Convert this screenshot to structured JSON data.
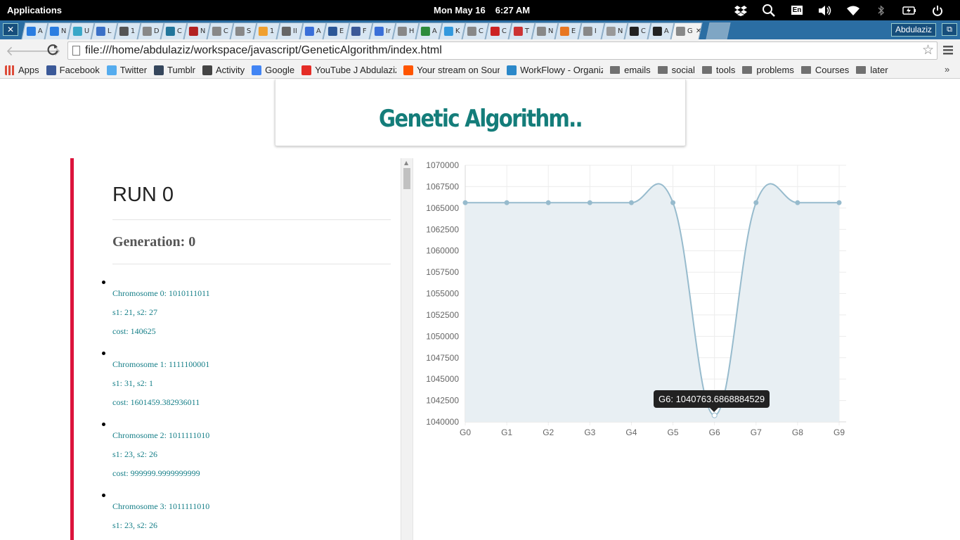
{
  "system": {
    "applications_label": "Applications",
    "date": "Mon May 16",
    "time": "6:27 AM",
    "keyboard_layout": "En",
    "icons": [
      "dropbox-icon",
      "search-icon",
      "keyboard-icon",
      "volume-icon",
      "wifi-icon",
      "bluetooth-icon",
      "battery-icon",
      "power-icon"
    ]
  },
  "tabs": {
    "close_all": "✕",
    "items": [
      {
        "letter": "A",
        "color": "#2a7de1"
      },
      {
        "letter": "N",
        "color": "#2a7de1"
      },
      {
        "letter": "U",
        "color": "#38a7c8"
      },
      {
        "letter": "L",
        "color": "#3a70c7"
      },
      {
        "letter": "1",
        "color": "#555555"
      },
      {
        "letter": "D",
        "color": "#888888"
      },
      {
        "letter": "C",
        "color": "#21759b"
      },
      {
        "letter": "N",
        "color": "#b22222"
      },
      {
        "letter": "C",
        "color": "#888888"
      },
      {
        "letter": "S",
        "color": "#888888"
      },
      {
        "letter": "1",
        "color": "#f0a030"
      },
      {
        "letter": "II",
        "color": "#666666"
      },
      {
        "letter": "A",
        "color": "#3a6fd8"
      },
      {
        "letter": "E",
        "color": "#2b5797"
      },
      {
        "letter": "F",
        "color": "#3b5998"
      },
      {
        "letter": "Ir",
        "color": "#3a6fd8"
      },
      {
        "letter": "H",
        "color": "#888888"
      },
      {
        "letter": "A",
        "color": "#2d8c3c"
      },
      {
        "letter": "K",
        "color": "#3399dd"
      },
      {
        "letter": "C",
        "color": "#888888"
      },
      {
        "letter": "C",
        "color": "#cc2222"
      },
      {
        "letter": "T",
        "color": "#cc3333"
      },
      {
        "letter": "N",
        "color": "#888888"
      },
      {
        "letter": "E",
        "color": "#e87722"
      },
      {
        "letter": "I",
        "color": "#888888"
      },
      {
        "letter": "N",
        "color": "#999999"
      },
      {
        "letter": "C",
        "color": "#222222"
      },
      {
        "letter": "A",
        "color": "#222222"
      },
      {
        "letter": "G",
        "color": "#888888"
      }
    ],
    "active_close": "✕",
    "user": "Abdulaziz",
    "restore": "⧉"
  },
  "address_bar": {
    "url": "file:///home/abdulaziz/workspace/javascript/GeneticAlgorithm/index.html"
  },
  "bookmarks": [
    {
      "label": "Apps",
      "color": "#dd4b39",
      "type": "apps"
    },
    {
      "label": "Facebook",
      "color": "#3b5998",
      "type": "site"
    },
    {
      "label": "Twitter",
      "color": "#55acee",
      "type": "site"
    },
    {
      "label": "Tumblr",
      "color": "#35465c",
      "type": "site"
    },
    {
      "label": "Activity",
      "color": "#444444",
      "type": "site"
    },
    {
      "label": "Google",
      "color": "#4285f4",
      "type": "site"
    },
    {
      "label": "YouTube J AbdulazizA",
      "color": "#e52d27",
      "type": "site"
    },
    {
      "label": "Your stream on Sounc",
      "color": "#ff5500",
      "type": "site"
    },
    {
      "label": "WorkFlowy - Organize",
      "color": "#2b88c9",
      "type": "site"
    },
    {
      "label": "emails",
      "type": "folder"
    },
    {
      "label": "social",
      "type": "folder"
    },
    {
      "label": "tools",
      "type": "folder"
    },
    {
      "label": "problems",
      "type": "folder"
    },
    {
      "label": "Courses",
      "type": "folder"
    },
    {
      "label": "later",
      "type": "folder"
    }
  ],
  "bookmarks_more": "»",
  "page": {
    "title": "Genetic Algorithm..",
    "run_label": "RUN 0",
    "generation_label": "Generation: 0",
    "chromosomes": [
      {
        "name": "Chromosome 0: 1010111011",
        "s": "s1: 21, s2: 27",
        "cost": "cost: 140625"
      },
      {
        "name": "Chromosome 1: 1111100001",
        "s": "s1: 31, s2: 1",
        "cost": "cost: 1601459.382936011"
      },
      {
        "name": "Chromosome 2: 1011111010",
        "s": "s1: 23, s2: 26",
        "cost": "cost: 999999.9999999999"
      },
      {
        "name": "Chromosome 3: 1011111010",
        "s": "s1: 23, s2: 26",
        "cost": ""
      }
    ]
  },
  "chart_data": {
    "type": "line",
    "categories": [
      "G0",
      "G1",
      "G2",
      "G3",
      "G4",
      "G5",
      "G6",
      "G7",
      "G8",
      "G9"
    ],
    "values": [
      1065625,
      1065625,
      1065625,
      1065625,
      1065625,
      1065625,
      1040763.6868884529,
      1065625,
      1065625,
      1065625
    ],
    "ylim": [
      1040000,
      1070000
    ],
    "yticks": [
      "1070000",
      "1067500",
      "1065000",
      "1062500",
      "1060000",
      "1057500",
      "1055000",
      "1052500",
      "1050000",
      "1047500",
      "1045000",
      "1042500",
      "1040000"
    ],
    "line_color": "#97bbcd",
    "fill_color": "#e8eff3",
    "grid": true,
    "tooltip": "G6: 1040763.6868884529"
  }
}
